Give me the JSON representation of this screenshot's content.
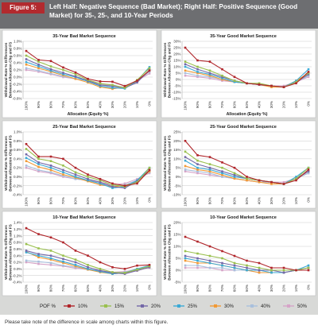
{
  "header": {
    "figure_label": "Figure 5:",
    "title": "Left Half: Negative Sequence (Bad Market); Right Half: Positive Sequence (Good Market) for 35-, 25-, and 10-Year Periods"
  },
  "footnote": "Please take note of the difference in scale among charts within this figure.",
  "legend": {
    "title": "POF %",
    "items": [
      "10%",
      "15%",
      "20%",
      "25%",
      "30%",
      "40%",
      "50%"
    ]
  },
  "colors": {
    "10%": "#b0252a",
    "15%": "#9ac04e",
    "20%": "#7469a8",
    "25%": "#3ba9d5",
    "30%": "#f29a36",
    "40%": "#a9c0dd",
    "50%": "#d6a4c8"
  },
  "x_categories": [
    "100%",
    "90%",
    "80%",
    "70%",
    "60%",
    "50%",
    "40%",
    "30%",
    "20%",
    "10%",
    "0%"
  ],
  "chart_data": [
    {
      "type": "line",
      "title": "35-Year Bad Market Sequence",
      "ylabel": "Withdrawal Rate % Differences Between Allocation Chg and FS",
      "xlabel": "Allocation (Equity %)",
      "categories": [
        "100%",
        "90%",
        "80%",
        "70%",
        "60%",
        "50%",
        "40%",
        "30%",
        "20%",
        "10%",
        "0%"
      ],
      "ylim": [
        -0.6,
        1.0
      ],
      "ytick_labels": [
        "1.0%",
        "0.8%",
        "0.6%",
        "0.4%",
        "0.2%",
        "0.0%",
        "-0.2%",
        "-0.4%",
        "-0.6%"
      ],
      "series": [
        {
          "name": "10%",
          "values": [
            0.73,
            0.48,
            0.45,
            0.27,
            0.13,
            -0.05,
            -0.12,
            -0.13,
            -0.25,
            -0.1,
            0.18
          ]
        },
        {
          "name": "15%",
          "values": [
            0.6,
            0.43,
            0.3,
            0.2,
            0.08,
            -0.08,
            -0.18,
            -0.22,
            -0.3,
            -0.08,
            0.25
          ]
        },
        {
          "name": "20%",
          "values": [
            0.5,
            0.35,
            0.22,
            0.12,
            0.02,
            -0.1,
            -0.22,
            -0.25,
            -0.3,
            -0.15,
            0.2
          ]
        },
        {
          "name": "25%",
          "values": [
            0.42,
            0.3,
            0.18,
            0.08,
            0.0,
            -0.12,
            -0.25,
            -0.3,
            -0.32,
            -0.1,
            0.28
          ]
        },
        {
          "name": "30%",
          "values": [
            0.35,
            0.25,
            0.15,
            0.05,
            -0.05,
            -0.15,
            -0.28,
            -0.33,
            -0.28,
            -0.12,
            0.2
          ]
        },
        {
          "name": "40%",
          "values": [
            0.25,
            0.18,
            0.1,
            0.02,
            -0.05,
            -0.1,
            -0.22,
            -0.28,
            -0.3,
            -0.12,
            0.15
          ]
        },
        {
          "name": "50%",
          "values": [
            0.2,
            0.15,
            0.08,
            0.0,
            -0.05,
            -0.1,
            -0.18,
            -0.25,
            -0.28,
            -0.1,
            0.1
          ]
        }
      ]
    },
    {
      "type": "line",
      "title": "35-Year Good Market Sequence",
      "ylabel": "Withdrawal Rate % Differences Between Allocation Chg and FS",
      "xlabel": "Allocation (Equity %)",
      "categories": [
        "100%",
        "90%",
        "80%",
        "70%",
        "60%",
        "50%",
        "40%",
        "30%",
        "20%",
        "10%",
        "0%"
      ],
      "ylim": [
        -15,
        30
      ],
      "ytick_labels": [
        "30%",
        "25%",
        "20%",
        "15%",
        "10%",
        "5%",
        "0%",
        "-5%",
        "-10%",
        "-15%"
      ],
      "series": [
        {
          "name": "10%",
          "values": [
            25,
            15,
            14,
            8,
            2,
            -3,
            -4,
            -5,
            -6,
            -3,
            6
          ]
        },
        {
          "name": "15%",
          "values": [
            14,
            10,
            7,
            3,
            -1,
            -3,
            -3,
            -5,
            -6,
            -2,
            5
          ]
        },
        {
          "name": "20%",
          "values": [
            12,
            8,
            5,
            2,
            -1,
            -3,
            -4,
            -5,
            -6,
            -2,
            4
          ]
        },
        {
          "name": "25%",
          "values": [
            10,
            6,
            4,
            1,
            -2,
            -3,
            -4,
            -5,
            -6,
            -1,
            8
          ]
        },
        {
          "name": "30%",
          "values": [
            7,
            5,
            3,
            0,
            -2,
            -3,
            -4,
            -6,
            -6,
            -1,
            5
          ]
        },
        {
          "name": "40%",
          "values": [
            5,
            3,
            2,
            0,
            -2,
            -3,
            -4,
            -5,
            -6,
            -2,
            3
          ]
        },
        {
          "name": "50%",
          "values": [
            3,
            2,
            1,
            -1,
            -2,
            -3,
            -4,
            -5,
            -5,
            -2,
            2
          ]
        }
      ]
    },
    {
      "type": "line",
      "title": "25-Year Bad Market Sequence",
      "ylabel": "Withdrawal Rate % Differences Between Allocation Chg and FS",
      "xlabel": "",
      "categories": [
        "100%",
        "90%",
        "80%",
        "70%",
        "60%",
        "50%",
        "40%",
        "30%",
        "20%",
        "10%",
        "0%"
      ],
      "ylim": [
        -0.4,
        1.0
      ],
      "ytick_labels": [
        "1.0%",
        "0.8%",
        "0.6%",
        "0.4%",
        "0.2%",
        "0.0%",
        "-0.2%",
        "-0.4%"
      ],
      "series": [
        {
          "name": "10%",
          "values": [
            0.73,
            0.45,
            0.45,
            0.4,
            0.2,
            0.05,
            -0.05,
            -0.15,
            -0.2,
            -0.15,
            0.15
          ]
        },
        {
          "name": "15%",
          "values": [
            0.62,
            0.4,
            0.35,
            0.25,
            0.1,
            0.0,
            -0.08,
            -0.18,
            -0.22,
            -0.12,
            0.2
          ]
        },
        {
          "name": "20%",
          "values": [
            0.5,
            0.32,
            0.25,
            0.15,
            0.05,
            -0.05,
            -0.12,
            -0.22,
            -0.25,
            -0.1,
            0.15
          ]
        },
        {
          "name": "25%",
          "values": [
            0.42,
            0.28,
            0.2,
            0.1,
            0.0,
            -0.08,
            -0.15,
            -0.25,
            -0.22,
            -0.08,
            0.2
          ]
        },
        {
          "name": "30%",
          "values": [
            0.35,
            0.22,
            0.15,
            0.05,
            -0.02,
            -0.1,
            -0.18,
            -0.22,
            -0.2,
            -0.1,
            0.12
          ]
        },
        {
          "name": "40%",
          "values": [
            0.25,
            0.15,
            0.1,
            0.02,
            -0.05,
            -0.08,
            -0.15,
            -0.2,
            -0.18,
            -0.08,
            0.1
          ]
        },
        {
          "name": "50%",
          "values": [
            0.2,
            0.12,
            0.08,
            0.0,
            -0.05,
            -0.08,
            -0.12,
            -0.18,
            -0.15,
            -0.05,
            0.08
          ]
        }
      ]
    },
    {
      "type": "line",
      "title": "25-Year Good Market Sequence",
      "ylabel": "Withdrawal Rate % Differences Between Allocation Chg and FS",
      "xlabel": "",
      "categories": [
        "100%",
        "90%",
        "80%",
        "70%",
        "60%",
        "50%",
        "40%",
        "30%",
        "20%",
        "10%",
        "0%"
      ],
      "ylim": [
        -10,
        25
      ],
      "ytick_labels": [
        "25%",
        "20%",
        "15%",
        "10%",
        "5%",
        "0%",
        "-5%",
        "-10%"
      ],
      "series": [
        {
          "name": "10%",
          "values": [
            20,
            12,
            11,
            8,
            5,
            0,
            -2,
            -3,
            -4,
            -2,
            4
          ]
        },
        {
          "name": "15%",
          "values": [
            14,
            9,
            7,
            5,
            2,
            -1,
            -2,
            -3,
            -4,
            -1,
            5
          ]
        },
        {
          "name": "20%",
          "values": [
            11,
            7,
            5,
            3,
            1,
            -1,
            -2,
            -3,
            -4,
            -1,
            3
          ]
        },
        {
          "name": "25%",
          "values": [
            9,
            5,
            4,
            2,
            0,
            -1,
            -2,
            -3,
            -4,
            0,
            5
          ]
        },
        {
          "name": "30%",
          "values": [
            6,
            4,
            3,
            1,
            -1,
            -2,
            -3,
            -4,
            -4,
            -1,
            3
          ]
        },
        {
          "name": "40%",
          "values": [
            4,
            3,
            2,
            0,
            -1,
            -2,
            -3,
            -3,
            -4,
            -1,
            2
          ]
        },
        {
          "name": "50%",
          "values": [
            3,
            2,
            1,
            0,
            -1,
            -2,
            -3,
            -3,
            -3,
            -1,
            2
          ]
        }
      ]
    },
    {
      "type": "line",
      "title": "10-Year Bad Market Sequence",
      "ylabel": "Withdrawal Rate % Differences Between Allocation Chg and FS",
      "xlabel": "",
      "categories": [
        "100%",
        "90%",
        "80%",
        "70%",
        "60%",
        "50%",
        "40%",
        "30%",
        "20%",
        "10%",
        "0%"
      ],
      "ylim": [
        -0.4,
        1.4
      ],
      "ytick_labels": [
        "1.4%",
        "1.2%",
        "1.0%",
        "0.8%",
        "0.6%",
        "0.4%",
        "0.2%",
        "0.0%",
        "-0.2%",
        "-0.4%"
      ],
      "series": [
        {
          "name": "10%",
          "values": [
            1.23,
            1.05,
            0.95,
            0.8,
            0.55,
            0.4,
            0.2,
            0.05,
            0.0,
            0.1,
            0.12
          ]
        },
        {
          "name": "15%",
          "values": [
            0.75,
            0.62,
            0.55,
            0.4,
            0.28,
            0.12,
            0.0,
            -0.1,
            -0.12,
            -0.02,
            0.08
          ]
        },
        {
          "name": "20%",
          "values": [
            0.55,
            0.45,
            0.4,
            0.3,
            0.2,
            0.05,
            -0.05,
            -0.12,
            -0.15,
            -0.05,
            0.05
          ]
        },
        {
          "name": "25%",
          "values": [
            0.5,
            0.4,
            0.32,
            0.22,
            0.12,
            0.0,
            -0.08,
            -0.15,
            -0.12,
            0.0,
            0.1
          ]
        },
        {
          "name": "30%",
          "values": [
            0.52,
            0.35,
            0.28,
            0.18,
            0.08,
            -0.02,
            -0.1,
            -0.15,
            -0.12,
            -0.05,
            0.05
          ]
        },
        {
          "name": "40%",
          "values": [
            0.25,
            0.22,
            0.18,
            0.1,
            0.05,
            -0.02,
            -0.08,
            -0.12,
            -0.1,
            -0.02,
            0.05
          ]
        },
        {
          "name": "50%",
          "values": [
            0.2,
            0.15,
            0.12,
            0.08,
            0.02,
            -0.02,
            -0.05,
            -0.1,
            -0.08,
            -0.02,
            0.03
          ]
        }
      ]
    },
    {
      "type": "line",
      "title": "10-Year Good Market Sequence",
      "ylabel": "Withdrawal Rate % Differences Between Allocation Chg and FS",
      "xlabel": "",
      "categories": [
        "100%",
        "90%",
        "80%",
        "70%",
        "60%",
        "50%",
        "40%",
        "30%",
        "20%",
        "10%",
        "0%"
      ],
      "ylim": [
        -5,
        20
      ],
      "ytick_labels": [
        "20%",
        "15%",
        "10%",
        "5%",
        "0%",
        "-5%"
      ],
      "series": [
        {
          "name": "10%",
          "values": [
            14,
            12,
            10,
            8,
            6,
            4,
            3,
            1,
            1,
            0,
            0
          ]
        },
        {
          "name": "15%",
          "values": [
            8,
            7,
            6,
            5,
            3,
            2,
            1,
            0,
            0,
            0,
            1
          ]
        },
        {
          "name": "20%",
          "values": [
            6,
            5,
            4,
            3,
            2,
            1,
            0,
            0,
            -1,
            0,
            1
          ]
        },
        {
          "name": "25%",
          "values": [
            5,
            4,
            3,
            2,
            1,
            0,
            0,
            -1,
            -1,
            0,
            2
          ]
        },
        {
          "name": "30%",
          "values": [
            4,
            3,
            3,
            2,
            1,
            0,
            -1,
            -1,
            -1,
            0,
            1
          ]
        },
        {
          "name": "40%",
          "values": [
            2,
            2,
            1,
            1,
            0,
            0,
            -1,
            -1,
            -1,
            0,
            1
          ]
        },
        {
          "name": "50%",
          "values": [
            1,
            1,
            1,
            0,
            0,
            0,
            -1,
            -1,
            -1,
            0,
            0
          ]
        }
      ]
    }
  ]
}
